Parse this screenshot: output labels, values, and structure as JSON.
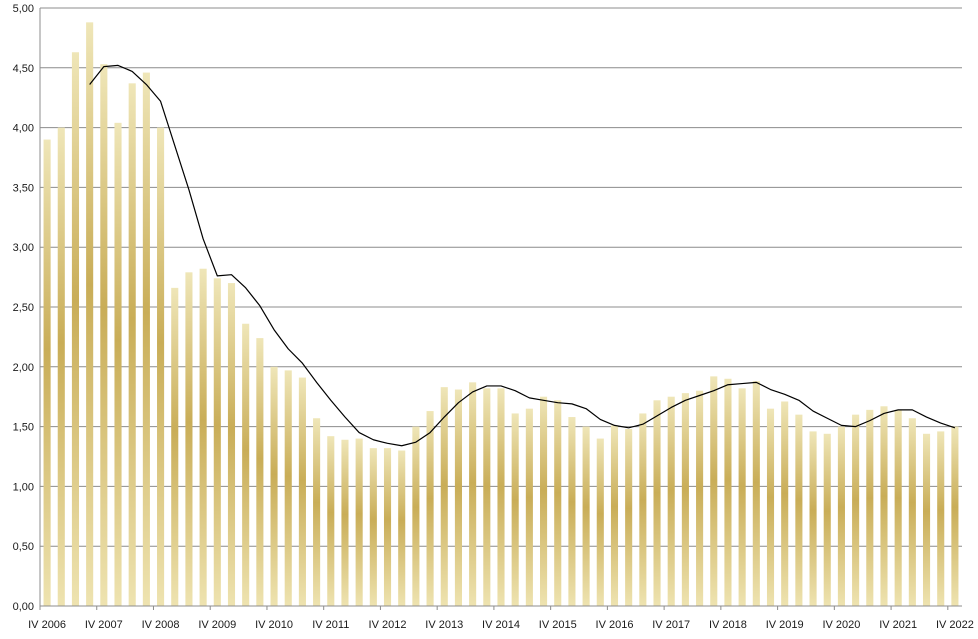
{
  "chart_data": {
    "type": "bar",
    "y_axis": {
      "min": 0,
      "max": 5,
      "step": 0.5,
      "tick_labels": [
        "0,00",
        "0,50",
        "1,00",
        "1,50",
        "2,00",
        "2,50",
        "3,00",
        "3,50",
        "4,00",
        "4,50",
        "5,00"
      ]
    },
    "x_tick_labels": [
      "IV 2006",
      "IV 2007",
      "IV 2008",
      "IV 2009",
      "IV 2010",
      "IV 2011",
      "IV 2012",
      "IV 2013",
      "IV 2014",
      "IV 2015",
      "IV 2016",
      "IV 2017",
      "IV 2018",
      "IV 2019",
      "IV 2020",
      "IV 2021",
      "IV 2022"
    ],
    "grid": true,
    "legend": "none",
    "bar_color_light": "#eee3b0",
    "bar_color_dark": "#c9ad57",
    "line_color": "#000000",
    "series": [
      {
        "kind": "bar",
        "values": [
          3.9,
          4.0,
          4.63,
          4.88,
          4.53,
          4.04,
          4.37,
          4.46,
          4.0,
          2.66,
          2.79,
          2.82,
          2.74,
          2.7,
          2.36,
          2.24,
          2.0,
          1.97,
          1.91,
          1.57,
          1.42,
          1.39,
          1.4,
          1.32,
          1.32,
          1.3,
          1.5,
          1.63,
          1.83,
          1.81,
          1.87,
          1.82,
          1.82,
          1.61,
          1.65,
          1.75,
          1.72,
          1.58,
          1.5,
          1.4,
          1.51,
          1.48,
          1.61,
          1.72,
          1.75,
          1.78,
          1.8,
          1.92,
          1.9,
          1.82,
          1.88,
          1.65,
          1.71,
          1.6,
          1.46,
          1.44,
          1.5,
          1.6,
          1.64,
          1.67,
          1.64,
          1.57,
          1.44,
          1.46,
          1.5
        ]
      },
      {
        "kind": "line",
        "start_index": 3,
        "values": [
          4.36,
          4.51,
          4.52,
          4.47,
          4.36,
          4.22,
          3.85,
          3.48,
          3.07,
          2.76,
          2.77,
          2.66,
          2.51,
          2.31,
          2.15,
          2.03,
          1.87,
          1.72,
          1.58,
          1.45,
          1.39,
          1.36,
          1.34,
          1.37,
          1.45,
          1.58,
          1.7,
          1.79,
          1.84,
          1.84,
          1.8,
          1.74,
          1.72,
          1.7,
          1.69,
          1.65,
          1.56,
          1.51,
          1.49,
          1.52,
          1.59,
          1.66,
          1.72,
          1.76,
          1.8,
          1.85,
          1.86,
          1.87,
          1.81,
          1.77,
          1.72,
          1.63,
          1.57,
          1.51,
          1.5,
          1.55,
          1.61,
          1.64,
          1.64,
          1.58,
          1.53,
          1.49
        ]
      }
    ]
  }
}
